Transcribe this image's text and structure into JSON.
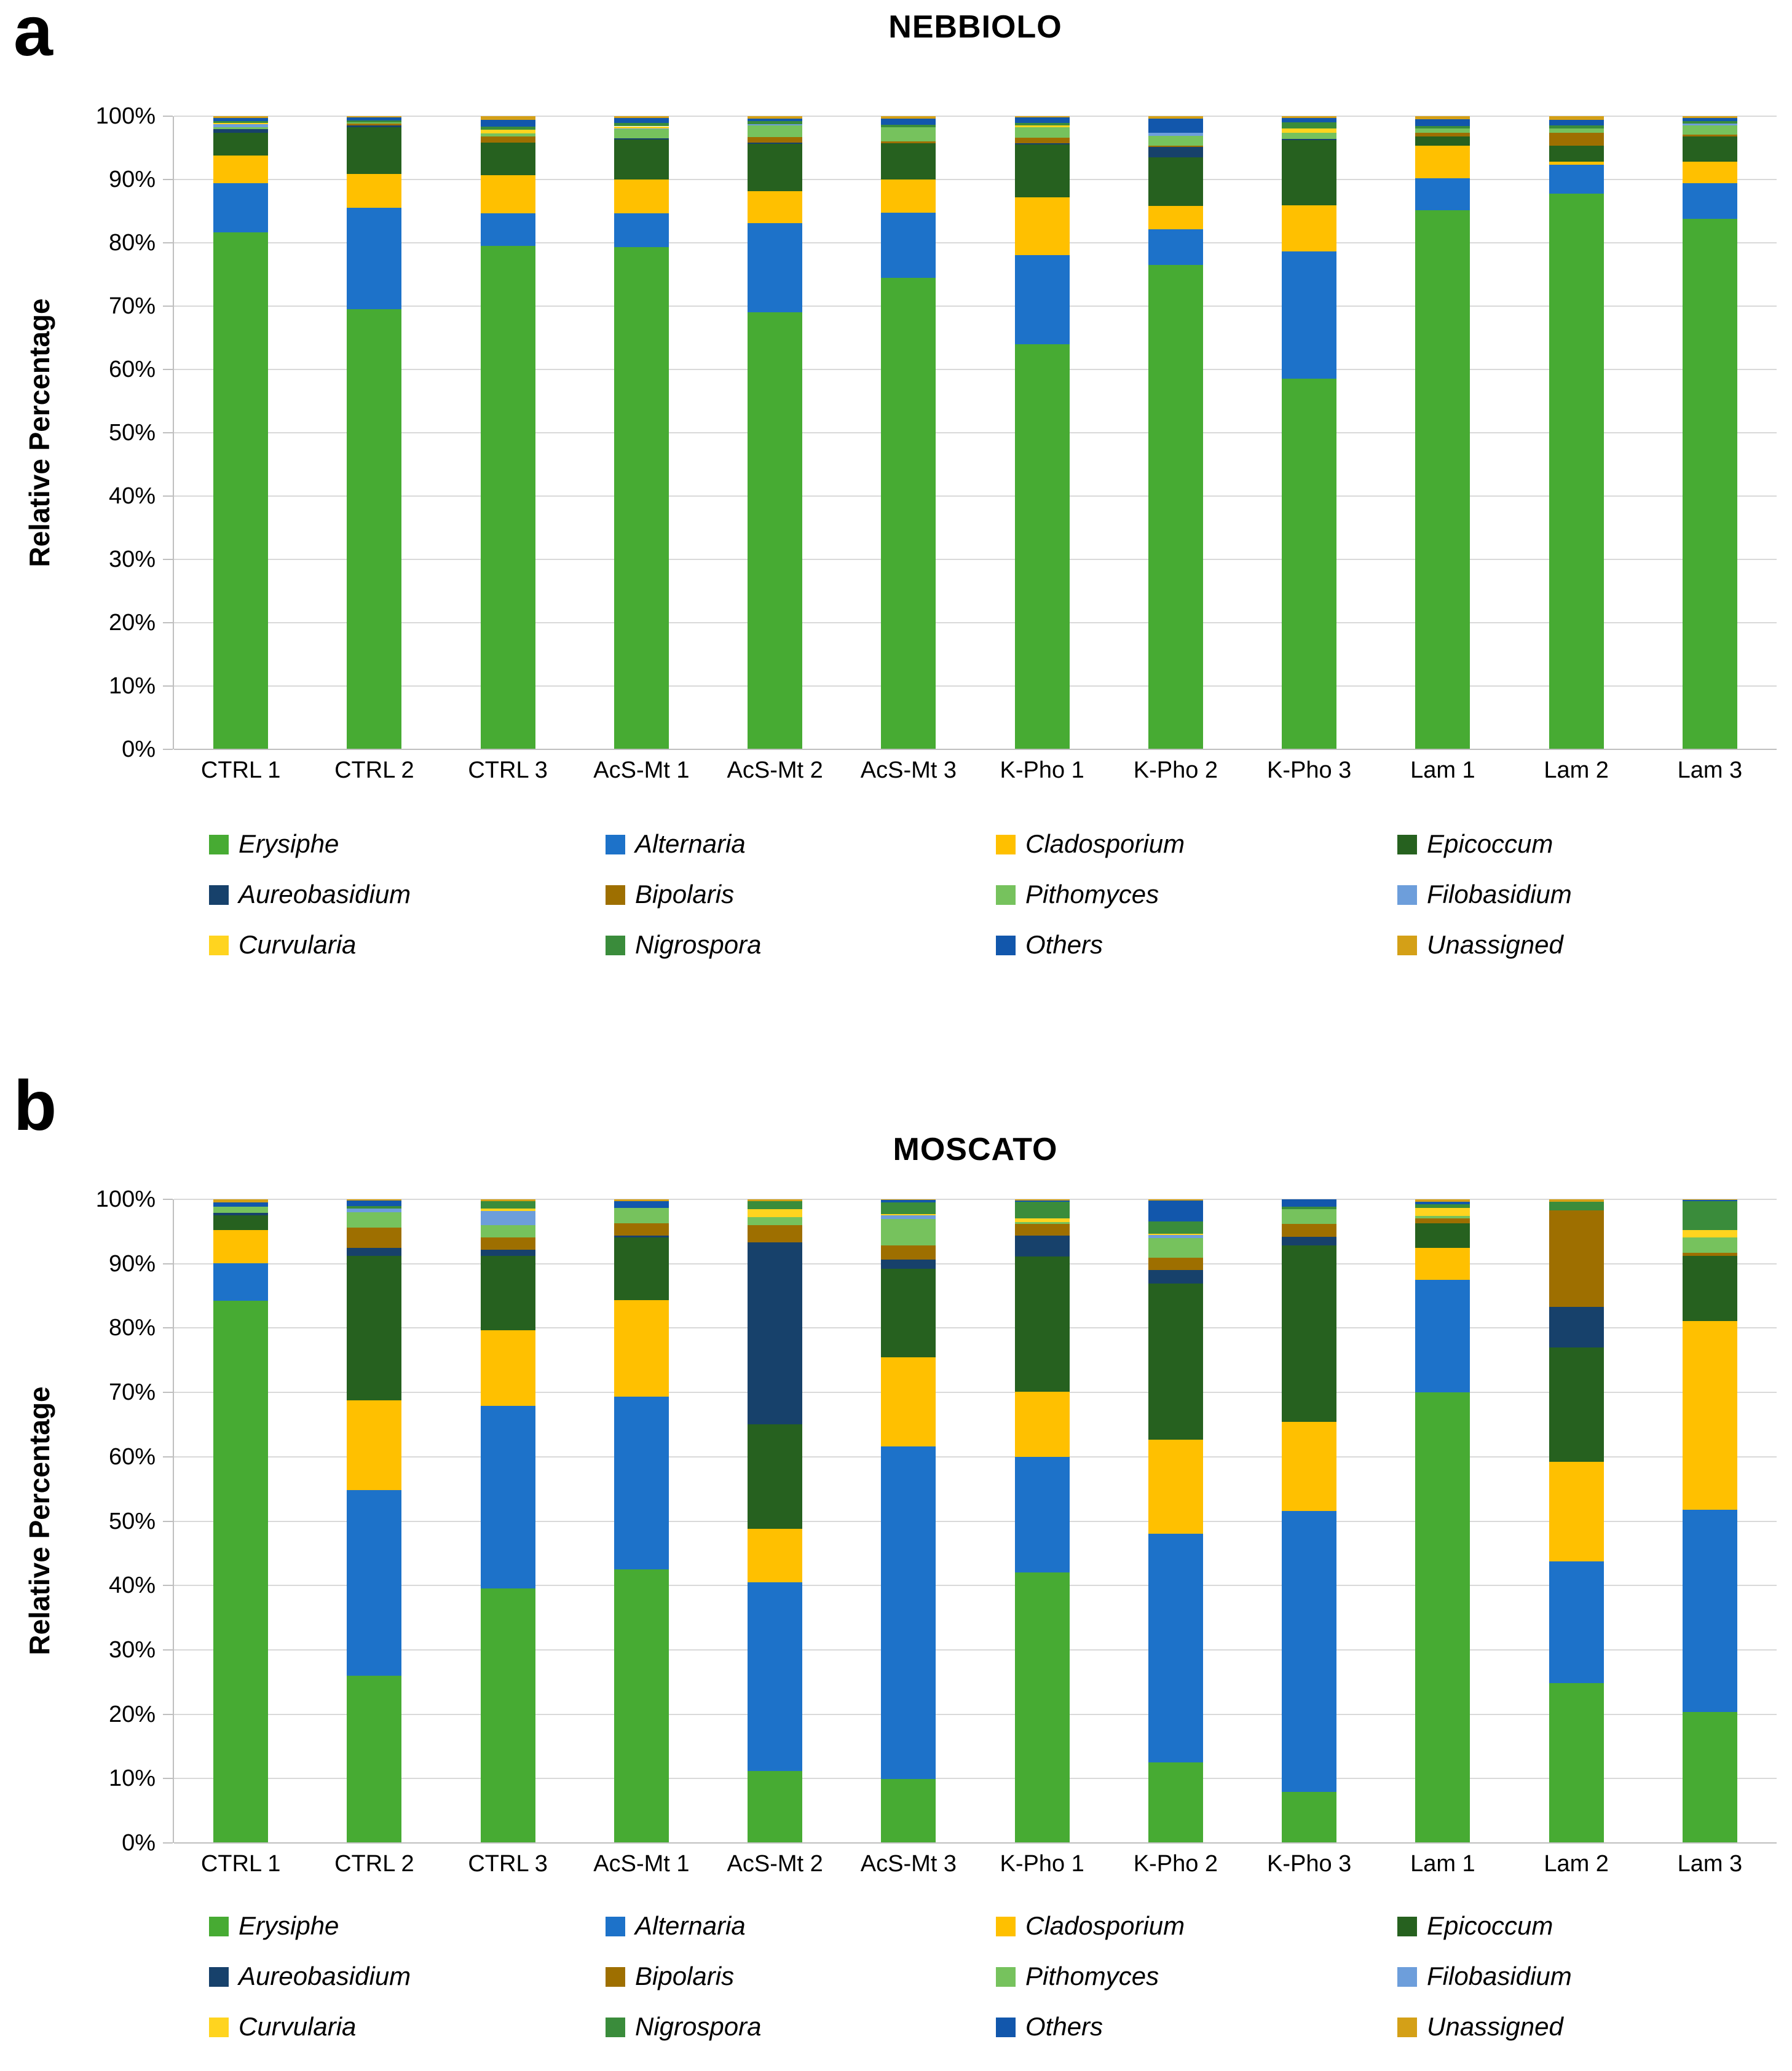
{
  "figure": {
    "panels": [
      {
        "letter": "a"
      },
      {
        "letter": "b"
      }
    ]
  },
  "axis": {
    "ylabel": "Relative Percentage",
    "y_ticks": [
      "0%",
      "10%",
      "20%",
      "30%",
      "40%",
      "50%",
      "60%",
      "70%",
      "80%",
      "90%",
      "100%"
    ]
  },
  "chart_data": [
    {
      "type": "bar",
      "subtype": "stacked-100",
      "panel": "a",
      "title": "NEBBIOLO",
      "xlabel": "",
      "ylabel": "Relative Percentage",
      "ylim": [
        0,
        100
      ],
      "grid": true,
      "legend_position": "bottom",
      "categories": [
        "CTRL 1",
        "CTRL 2",
        "CTRL 3",
        "AcS-Mt 1",
        "AcS-Mt 2",
        "AcS-Mt 3",
        "K-Pho 1",
        "K-Pho 2",
        "K-Pho 3",
        "Lam 1",
        "Lam 2",
        "Lam 3"
      ],
      "series": [
        {
          "name": "Erysiphe",
          "color": "#47AB33",
          "values": [
            81.7,
            69.5,
            79.5,
            79.3,
            69.0,
            74.5,
            64.0,
            76.5,
            58.5,
            85.1,
            87.8,
            83.8
          ]
        },
        {
          "name": "Alternaria",
          "color": "#1D72C9",
          "values": [
            7.7,
            16.0,
            5.2,
            5.4,
            14.1,
            10.3,
            14.1,
            5.6,
            20.1,
            5.1,
            4.5,
            5.6
          ]
        },
        {
          "name": "Cladosporium",
          "color": "#FFC000",
          "values": [
            4.4,
            5.4,
            6.0,
            5.3,
            5.1,
            5.2,
            9.1,
            3.7,
            7.3,
            5.1,
            0.5,
            3.4
          ]
        },
        {
          "name": "Epicoccum",
          "color": "#26611F",
          "values": [
            3.6,
            7.4,
            5.1,
            6.3,
            7.4,
            5.7,
            8.3,
            7.7,
            10.3,
            1.5,
            2.5,
            4.0
          ]
        },
        {
          "name": "Aureobasidium",
          "color": "#17416B",
          "values": [
            0.6,
            0.2,
            0,
            0.2,
            0.2,
            0,
            0.2,
            1.6,
            0.2,
            0,
            0,
            0
          ]
        },
        {
          "name": "Bipolaris",
          "color": "#9E6F00",
          "values": [
            0,
            0.3,
            1.0,
            0,
            0.9,
            0.3,
            0.9,
            0.2,
            0,
            0.6,
            2.1,
            0.3
          ]
        },
        {
          "name": "Pithomyces",
          "color": "#76C25D",
          "values": [
            0.3,
            0.2,
            0.5,
            1.5,
            1.8,
            2.3,
            1.7,
            1.6,
            1.0,
            0.65,
            0.7,
            1.4
          ]
        },
        {
          "name": "Filobasidium",
          "color": "#6D9EDB",
          "values": [
            0.4,
            0,
            0,
            0.1,
            0.2,
            0,
            0,
            0.5,
            0,
            0,
            0,
            0.3
          ]
        },
        {
          "name": "Curvularia",
          "color": "#FFD41F",
          "values": [
            0.2,
            0,
            0.55,
            0.3,
            0,
            0,
            0.2,
            0,
            0.65,
            0,
            0,
            0
          ]
        },
        {
          "name": "Nigrospora",
          "color": "#3A8C3B",
          "values": [
            0.3,
            0.3,
            0.5,
            0.5,
            0.5,
            0.3,
            0.4,
            0,
            1.0,
            0.4,
            0.45,
            0.4
          ]
        },
        {
          "name": "Others",
          "color": "#1257AC",
          "values": [
            0.5,
            0.5,
            1.1,
            0.8,
            0.4,
            1.0,
            0.9,
            2.2,
            0.7,
            1.1,
            0.9,
            0.5
          ]
        },
        {
          "name": "Unassigned",
          "color": "#D4A017",
          "values": [
            0.3,
            0.2,
            0.55,
            0.3,
            0.4,
            0.4,
            0.2,
            0.4,
            0.25,
            0.45,
            0.55,
            0.3
          ]
        }
      ]
    },
    {
      "type": "bar",
      "subtype": "stacked-100",
      "panel": "b",
      "title": "MOSCATO",
      "xlabel": "",
      "ylabel": "Relative Percentage",
      "ylim": [
        0,
        100
      ],
      "grid": true,
      "legend_position": "bottom",
      "categories": [
        "CTRL 1",
        "CTRL 2",
        "CTRL 3",
        "AcS-Mt 1",
        "AcS-Mt 2",
        "AcS-Mt 3",
        "K-Pho 1",
        "K-Pho 2",
        "K-Pho 3",
        "Lam 1",
        "Lam 2",
        "Lam 3"
      ],
      "series": [
        {
          "name": "Erysiphe",
          "color": "#47AB33",
          "values": [
            84.2,
            26.0,
            39.5,
            42.5,
            11.2,
            9.9,
            42.0,
            12.5,
            7.9,
            70.0,
            24.8,
            20.3
          ]
        },
        {
          "name": "Alternaria",
          "color": "#1D72C9",
          "values": [
            5.9,
            28.8,
            28.4,
            26.8,
            29.3,
            51.7,
            18.0,
            35.5,
            43.7,
            17.5,
            18.9,
            31.5
          ]
        },
        {
          "name": "Cladosporium",
          "color": "#FFC000",
          "values": [
            5.1,
            14.0,
            11.8,
            15.0,
            8.3,
            13.9,
            10.1,
            14.7,
            13.8,
            5.0,
            15.5,
            29.3
          ]
        },
        {
          "name": "Epicoccum",
          "color": "#26611F",
          "values": [
            2.3,
            22.4,
            11.5,
            9.8,
            16.2,
            13.7,
            21.0,
            24.2,
            27.4,
            3.8,
            17.8,
            10.1
          ]
        },
        {
          "name": "Aureobasidium",
          "color": "#17416B",
          "values": [
            0.4,
            1.3,
            1.0,
            0.25,
            28.3,
            1.4,
            3.3,
            2.1,
            1.4,
            0,
            6.3,
            0
          ]
        },
        {
          "name": "Bipolaris",
          "color": "#9E6F00",
          "values": [
            0,
            3.1,
            1.9,
            1.95,
            2.7,
            2.2,
            1.8,
            1.9,
            2.0,
            0.7,
            15.0,
            0.5
          ]
        },
        {
          "name": "Pithomyces",
          "color": "#76C25D",
          "values": [
            1.0,
            2.4,
            1.9,
            2.4,
            1.2,
            4.1,
            0.3,
            3.1,
            2.3,
            0.4,
            0,
            2.4
          ]
        },
        {
          "name": "Filobasidium",
          "color": "#6D9EDB",
          "values": [
            0,
            0.55,
            2.2,
            0,
            0,
            0.6,
            0,
            0.45,
            0,
            0,
            0,
            0
          ]
        },
        {
          "name": "Curvularia",
          "color": "#FFD41F",
          "values": [
            0,
            0,
            0.4,
            0,
            1.3,
            0.2,
            0.5,
            0.25,
            0,
            1.3,
            0,
            1.1
          ]
        },
        {
          "name": "Nigrospora",
          "color": "#3A8C3B",
          "values": [
            0,
            0.4,
            1.1,
            0,
            1.2,
            1.8,
            2.6,
            1.85,
            0.4,
            0.5,
            1.3,
            4.5
          ]
        },
        {
          "name": "Others",
          "color": "#1257AC",
          "values": [
            0.65,
            0.85,
            0,
            1.0,
            0,
            0.4,
            0.2,
            3.25,
            1.1,
            0.4,
            0,
            0.2
          ]
        },
        {
          "name": "Unassigned",
          "color": "#D4A017",
          "values": [
            0.45,
            0.2,
            0.3,
            0.3,
            0.3,
            0.1,
            0.2,
            0.2,
            0,
            0.4,
            0.4,
            0.1
          ]
        }
      ]
    }
  ]
}
